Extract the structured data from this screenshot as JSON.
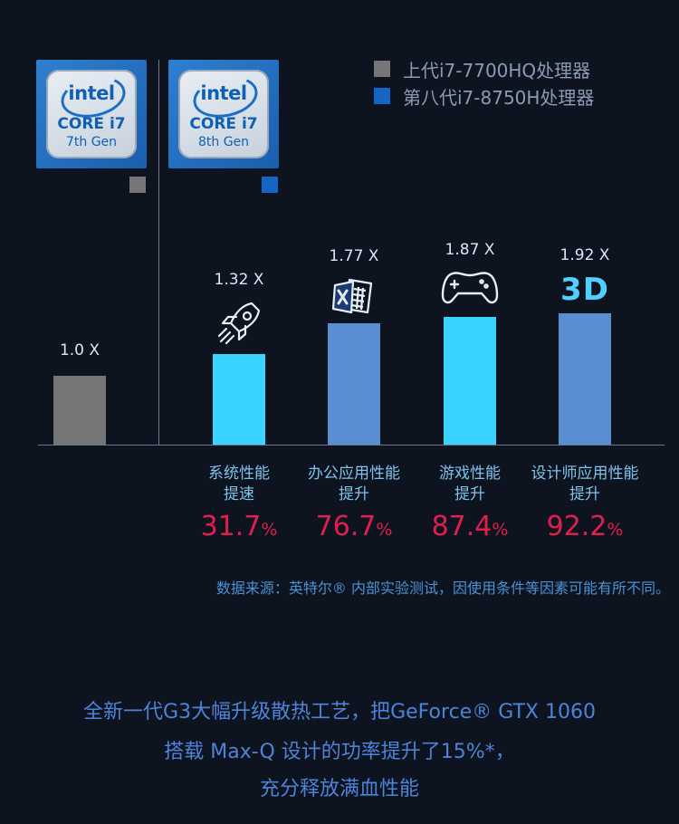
{
  "badges": [
    {
      "brand": "intel",
      "line": "CORE i7",
      "gen": "7th Gen"
    },
    {
      "brand": "intel",
      "line": "CORE i7",
      "gen": "8th Gen"
    }
  ],
  "colors": {
    "background": "#0e1320",
    "gray": "#767676",
    "blue_legend": "#1565c8",
    "cyan_bar": "#3ad2ff",
    "steel_bar": "#5a8ed0",
    "category_text": "#7ec4ea",
    "percent_text": "#e0204a"
  },
  "chart_data": {
    "type": "bar",
    "legend": [
      {
        "name": "上代i7-7700HQ处理器",
        "color": "#767676"
      },
      {
        "name": "第八代i7-8750H处理器",
        "color": "#1565c8"
      }
    ],
    "legend_position": "top-right",
    "baseline": {
      "label": "1.0 X",
      "value": 1.0,
      "color": "#767676"
    },
    "categories": [
      {
        "label": "系统性能提速",
        "lines": [
          "系统性能",
          "提速"
        ],
        "value": 1.32,
        "value_label": "1.32 X",
        "percent": "31.7",
        "percent_unit": "%",
        "icon": "rocket-icon",
        "color": "#3ad2ff"
      },
      {
        "label": "办公应用性能提升",
        "lines": [
          "办公应用性能",
          "提升"
        ],
        "value": 1.77,
        "value_label": "1.77 X",
        "percent": "76.7",
        "percent_unit": "%",
        "icon": "office-document-icon",
        "color": "#5a8ed0"
      },
      {
        "label": "游戏性能提升",
        "lines": [
          "游戏性能",
          "提升"
        ],
        "value": 1.87,
        "value_label": "1.87 X",
        "percent": "87.4",
        "percent_unit": "%",
        "icon": "gamepad-icon",
        "color": "#3ad2ff"
      },
      {
        "label": "设计师应用性能提升",
        "lines": [
          "设计师应用性能",
          "提升"
        ],
        "value": 1.92,
        "value_label": "1.92 X",
        "percent": "92.2",
        "percent_unit": "%",
        "icon": "3d-icon",
        "icon_text": "3D",
        "color": "#5a8ed0"
      }
    ],
    "grid": false
  },
  "source_note": "数据来源：英特尔® 内部实验测试，因使用条件等因素可能有所不同。",
  "footer": [
    "全新一代G3大幅升级散热工艺，把GeForce® GTX 1060",
    "搭载 Max-Q 设计的功率提升了15%*，",
    "充分释放满血性能"
  ]
}
